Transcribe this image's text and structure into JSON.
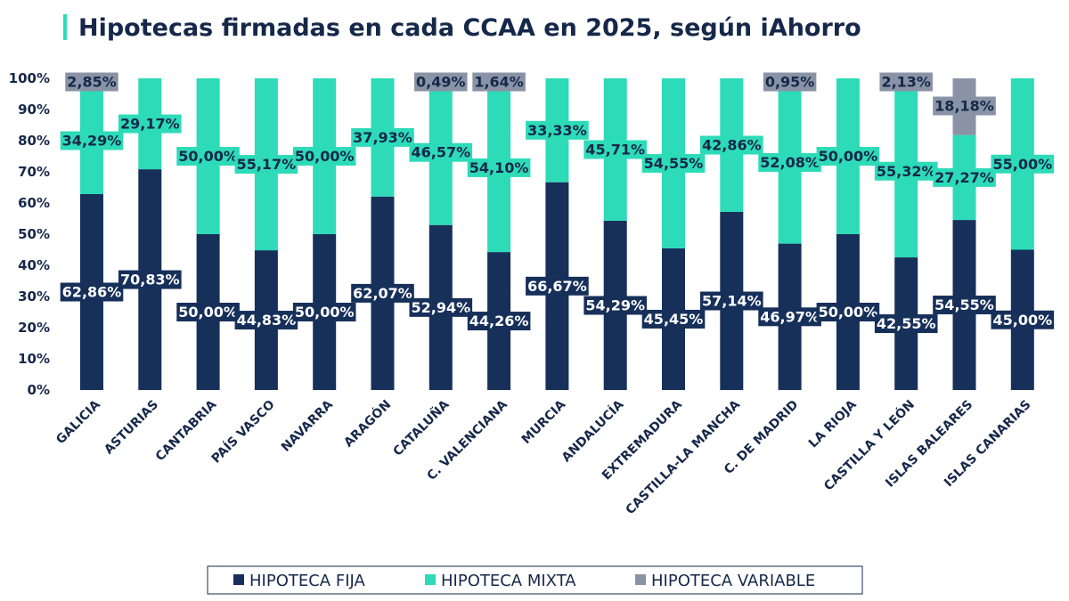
{
  "header": {
    "title": "Hipotecas firmadas en cada CCAA en 2025, según iAhorro"
  },
  "colors": {
    "fija": "#17305a",
    "mixta": "#2ddbb8",
    "variable": "#8a93a6",
    "text": "#16284a"
  },
  "chart_data": {
    "type": "bar",
    "stacked": true,
    "title": "Hipotecas firmadas en cada CCAA en 2025, según iAhorro",
    "xlabel": "",
    "ylabel": "",
    "ylim": [
      0,
      100
    ],
    "yticks": [
      "0%",
      "10%",
      "20%",
      "30%",
      "40%",
      "50%",
      "60%",
      "70%",
      "80%",
      "90%",
      "100%"
    ],
    "grid": false,
    "legend_position": "bottom",
    "categories": [
      "GALICIA",
      "ASTURIAS",
      "CANTABRIA",
      "PAÍS VASCO",
      "NAVARRA",
      "ARAGÓN",
      "CATALUÑA",
      "C. VALENCIANA",
      "MURCIA",
      "ANDALUCÍA",
      "EXTREMADURA",
      "CASTILLA-LA MANCHA",
      "C. DE MADRID",
      "LA RIOJA",
      "CASTILLA Y LEÓN",
      "ISLAS BALEARES",
      "ISLAS CANARIAS"
    ],
    "series": [
      {
        "name": "HIPOTECA FIJA",
        "values": [
          62.86,
          70.83,
          50.0,
          44.83,
          50.0,
          62.07,
          52.94,
          44.26,
          66.67,
          54.29,
          45.45,
          57.14,
          46.97,
          50.0,
          42.55,
          54.55,
          45.0
        ],
        "labels": [
          "62,86%",
          "70,83%",
          "50,00%",
          "44,83%",
          "50,00%",
          "62,07%",
          "52,94%",
          "44,26%",
          "66,67%",
          "54,29%",
          "45,45%",
          "57,14%",
          "46,97%",
          "50,00%",
          "42,55%",
          "54,55%",
          "45,00%"
        ]
      },
      {
        "name": "HIPOTECA MIXTA",
        "values": [
          34.29,
          29.17,
          50.0,
          55.17,
          50.0,
          37.93,
          46.57,
          54.1,
          33.33,
          45.71,
          54.55,
          42.86,
          52.08,
          50.0,
          55.32,
          27.27,
          55.0
        ],
        "labels": [
          "34,29%",
          "29,17%",
          "50,00%",
          "55,17%",
          "50,00%",
          "37,93%",
          "46,57%",
          "54,10%",
          "33,33%",
          "45,71%",
          "54,55%",
          "42,86%",
          "52,08%",
          "50,00%",
          "55,32%",
          "27,27%",
          "55,00%"
        ]
      },
      {
        "name": "HIPOTECA VARIABLE",
        "values": [
          2.85,
          0,
          0,
          0,
          0,
          0,
          0.49,
          1.64,
          0,
          0,
          0,
          0,
          0.95,
          0,
          2.13,
          18.18,
          0
        ],
        "labels": [
          "2,85%",
          "",
          "",
          "",
          "",
          "",
          "0,49%",
          "1,64%",
          "",
          "",
          "",
          "",
          "0,95%",
          "",
          "2,13%",
          "18,18%",
          ""
        ]
      }
    ]
  }
}
